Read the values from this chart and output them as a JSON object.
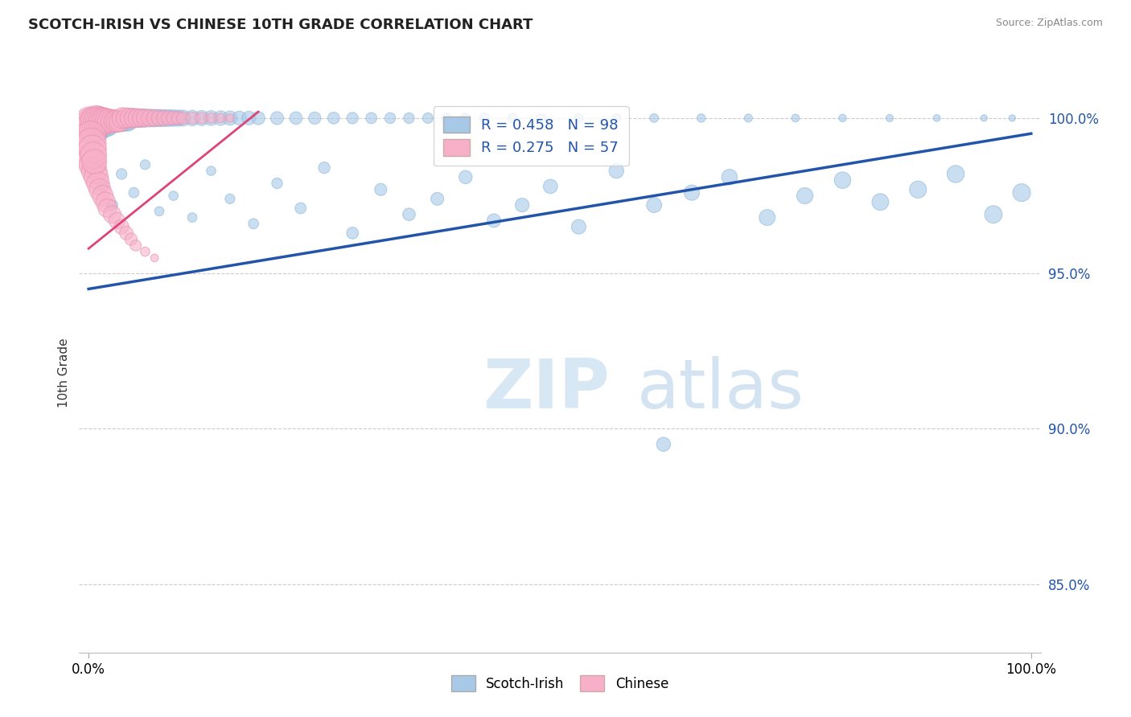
{
  "title": "SCOTCH-IRISH VS CHINESE 10TH GRADE CORRELATION CHART",
  "source": "Source: ZipAtlas.com",
  "ylabel": "10th Grade",
  "ymin": 0.828,
  "ymax": 1.008,
  "xmin": -0.01,
  "xmax": 1.01,
  "blue_R": 0.458,
  "blue_N": 98,
  "pink_R": 0.275,
  "pink_N": 57,
  "legend_label_blue": "Scotch-Irish",
  "legend_label_pink": "Chinese",
  "blue_color": "#a8c8e8",
  "blue_line_color": "#2255aa",
  "pink_color": "#f8b0c8",
  "pink_line_color": "#dd4477",
  "background_color": "#ffffff",
  "grid_color": "#cccccc",
  "title_color": "#222222",
  "watermark_zip": "ZIP",
  "watermark_atlas": "atlas",
  "ytick_positions": [
    0.85,
    0.9,
    0.95,
    1.0
  ],
  "ytick_labels": [
    "85.0%",
    "90.0%",
    "95.0%",
    "100.0%"
  ],
  "blue_trend_x": [
    0.0,
    1.0
  ],
  "blue_trend_y": [
    0.945,
    0.995
  ],
  "pink_trend_x": [
    0.0,
    0.18
  ],
  "pink_trend_y": [
    0.958,
    1.002
  ],
  "blue_scatter_x": [
    0.005,
    0.008,
    0.01,
    0.012,
    0.015,
    0.018,
    0.02,
    0.022,
    0.025,
    0.028,
    0.03,
    0.032,
    0.035,
    0.038,
    0.04,
    0.042,
    0.045,
    0.048,
    0.05,
    0.055,
    0.06,
    0.065,
    0.07,
    0.075,
    0.08,
    0.085,
    0.09,
    0.095,
    0.1,
    0.11,
    0.12,
    0.13,
    0.14,
    0.15,
    0.16,
    0.17,
    0.18,
    0.2,
    0.22,
    0.24,
    0.26,
    0.28,
    0.3,
    0.32,
    0.34,
    0.36,
    0.38,
    0.4,
    0.42,
    0.45,
    0.48,
    0.52,
    0.56,
    0.6,
    0.65,
    0.7,
    0.75,
    0.8,
    0.85,
    0.9,
    0.95,
    0.98,
    0.015,
    0.025,
    0.035,
    0.048,
    0.06,
    0.075,
    0.09,
    0.11,
    0.13,
    0.15,
    0.175,
    0.2,
    0.225,
    0.25,
    0.28,
    0.31,
    0.34,
    0.37,
    0.4,
    0.43,
    0.46,
    0.49,
    0.52,
    0.56,
    0.6,
    0.64,
    0.68,
    0.72,
    0.76,
    0.8,
    0.84,
    0.88,
    0.92,
    0.96,
    0.99,
    0.61
  ],
  "blue_scatter_y": [
    0.996,
    0.997,
    0.997,
    0.998,
    0.998,
    0.998,
    0.998,
    0.999,
    0.999,
    0.999,
    0.999,
    0.999,
    0.999,
    0.999,
    0.999,
    0.999,
    1.0,
    1.0,
    1.0,
    1.0,
    1.0,
    1.0,
    1.0,
    1.0,
    1.0,
    1.0,
    1.0,
    1.0,
    1.0,
    1.0,
    1.0,
    1.0,
    1.0,
    1.0,
    1.0,
    1.0,
    1.0,
    1.0,
    1.0,
    1.0,
    1.0,
    1.0,
    1.0,
    1.0,
    1.0,
    1.0,
    1.0,
    1.0,
    1.0,
    1.0,
    1.0,
    1.0,
    1.0,
    1.0,
    1.0,
    1.0,
    1.0,
    1.0,
    1.0,
    1.0,
    1.0,
    1.0,
    0.978,
    0.972,
    0.982,
    0.976,
    0.985,
    0.97,
    0.975,
    0.968,
    0.983,
    0.974,
    0.966,
    0.979,
    0.971,
    0.984,
    0.963,
    0.977,
    0.969,
    0.974,
    0.981,
    0.967,
    0.972,
    0.978,
    0.965,
    0.983,
    0.972,
    0.976,
    0.981,
    0.968,
    0.975,
    0.98,
    0.973,
    0.977,
    0.982,
    0.969,
    0.976,
    0.895
  ],
  "blue_scatter_sizes": [
    200,
    180,
    170,
    160,
    150,
    140,
    130,
    120,
    115,
    110,
    105,
    100,
    95,
    90,
    88,
    86,
    84,
    82,
    80,
    78,
    75,
    72,
    70,
    68,
    66,
    64,
    62,
    60,
    58,
    55,
    52,
    50,
    48,
    46,
    44,
    42,
    40,
    38,
    36,
    34,
    32,
    30,
    28,
    27,
    26,
    25,
    24,
    23,
    22,
    21,
    20,
    19,
    18,
    17,
    16,
    15,
    14,
    13,
    12,
    11,
    10,
    10,
    30,
    28,
    26,
    24,
    22,
    20,
    20,
    20,
    20,
    22,
    24,
    26,
    28,
    30,
    32,
    34,
    36,
    38,
    40,
    42,
    44,
    46,
    48,
    50,
    52,
    54,
    56,
    58,
    60,
    62,
    64,
    66,
    68,
    70,
    72,
    45
  ],
  "pink_scatter_x": [
    0.002,
    0.004,
    0.006,
    0.008,
    0.01,
    0.012,
    0.014,
    0.016,
    0.018,
    0.02,
    0.022,
    0.025,
    0.028,
    0.03,
    0.033,
    0.036,
    0.04,
    0.044,
    0.048,
    0.052,
    0.056,
    0.06,
    0.065,
    0.07,
    0.075,
    0.08,
    0.085,
    0.09,
    0.095,
    0.1,
    0.11,
    0.12,
    0.13,
    0.14,
    0.15,
    0.002,
    0.004,
    0.006,
    0.008,
    0.01,
    0.012,
    0.015,
    0.018,
    0.02,
    0.025,
    0.03,
    0.035,
    0.04,
    0.045,
    0.05,
    0.06,
    0.07,
    0.002,
    0.003,
    0.004,
    0.005,
    0.006
  ],
  "pink_scatter_y": [
    0.998,
    0.998,
    0.998,
    0.999,
    0.999,
    0.999,
    0.999,
    0.999,
    0.999,
    0.999,
    0.999,
    0.999,
    0.999,
    0.999,
    0.999,
    1.0,
    1.0,
    1.0,
    1.0,
    1.0,
    1.0,
    1.0,
    1.0,
    1.0,
    1.0,
    1.0,
    1.0,
    1.0,
    1.0,
    1.0,
    1.0,
    1.0,
    1.0,
    1.0,
    1.0,
    0.987,
    0.985,
    0.983,
    0.981,
    0.979,
    0.977,
    0.975,
    0.973,
    0.971,
    0.969,
    0.967,
    0.965,
    0.963,
    0.961,
    0.959,
    0.957,
    0.955,
    0.994,
    0.992,
    0.99,
    0.988,
    0.986
  ],
  "pink_scatter_sizes": [
    280,
    260,
    240,
    220,
    200,
    185,
    170,
    160,
    150,
    140,
    130,
    120,
    115,
    110,
    105,
    100,
    95,
    90,
    85,
    80,
    75,
    70,
    65,
    60,
    56,
    52,
    48,
    44,
    40,
    36,
    32,
    28,
    24,
    20,
    16,
    180,
    165,
    150,
    135,
    120,
    110,
    100,
    90,
    80,
    70,
    60,
    50,
    42,
    35,
    28,
    20,
    14,
    220,
    200,
    180,
    160,
    140
  ]
}
